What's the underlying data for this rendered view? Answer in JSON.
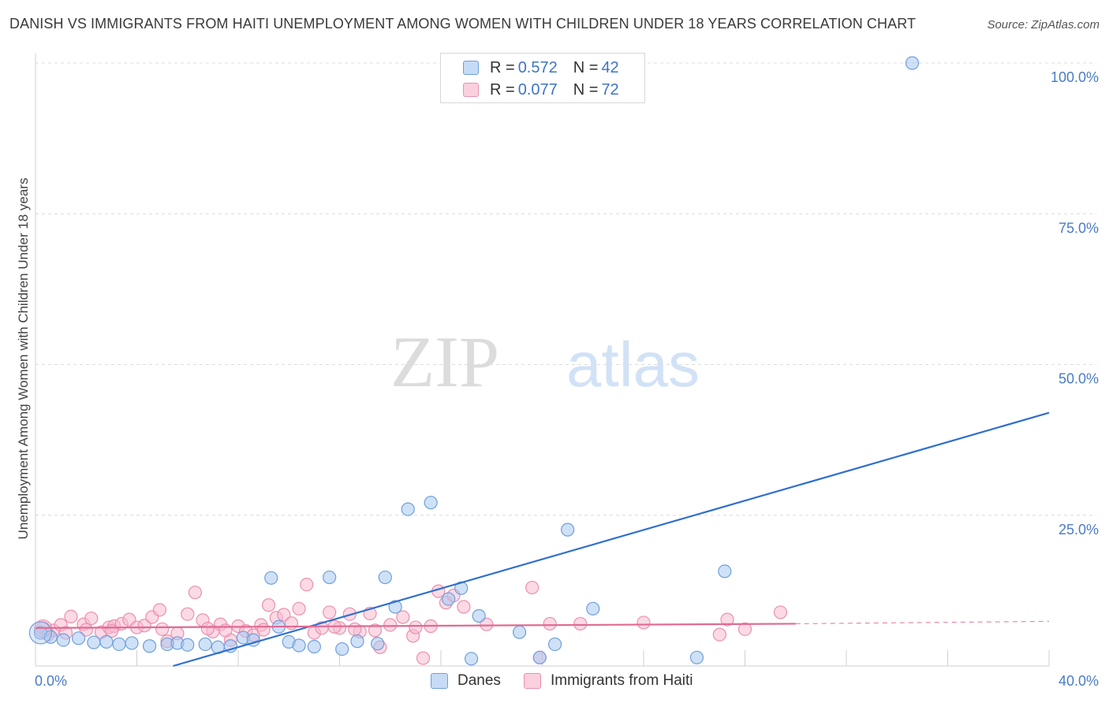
{
  "title": "DANISH VS IMMIGRANTS FROM HAITI UNEMPLOYMENT AMONG WOMEN WITH CHILDREN UNDER 18 YEARS CORRELATION CHART",
  "source": "Source: ZipAtlas.com",
  "watermark": {
    "zip": "ZIP",
    "atlas": "atlas"
  },
  "legend": {
    "rows": [
      {
        "r_label": "R = ",
        "r_value": "0.572",
        "n_label": "N = ",
        "n_value": "42",
        "color": "#a8c8f0"
      },
      {
        "r_label": "R = ",
        "r_value": "0.077",
        "n_label": "N = ",
        "n_value": "72",
        "color": "#f8bcd0"
      }
    ]
  },
  "bottom_legend": {
    "danes": "Danes",
    "haiti": "Immigrants from Haiti"
  },
  "colors": {
    "danes_fill": "#a8c8f0",
    "danes_stroke": "#6f9fdc",
    "danes_line": "#2f6fcf",
    "haiti_fill": "#f8bcd0",
    "haiti_stroke": "#ec8fae",
    "haiti_line": "#e06a92",
    "tick": "#4a7cc7",
    "grid": "#dcdcdc"
  },
  "chart_data": {
    "type": "scatter",
    "ylabel": "Unemployment Among Women with Children Under 18 years",
    "xlabel": "",
    "xlim": [
      0,
      40
    ],
    "ylim": [
      0,
      100
    ],
    "y_ticks": [
      {
        "value": 25,
        "label": "25.0%"
      },
      {
        "value": 50,
        "label": "50.0%"
      },
      {
        "value": 75,
        "label": "75.0%"
      },
      {
        "value": 100,
        "label": "100.0%"
      }
    ],
    "x_ticks": [
      {
        "value": 0,
        "label": "0.0%"
      },
      {
        "value": 40,
        "label": "40.0%"
      }
    ],
    "grid": true,
    "series": [
      {
        "name": "Danes",
        "points": [
          [
            0.2,
            5.5
          ],
          [
            0.6,
            4.8
          ],
          [
            1.1,
            4.3
          ],
          [
            1.7,
            4.6
          ],
          [
            2.3,
            3.9
          ],
          [
            2.8,
            4.0
          ],
          [
            3.3,
            3.6
          ],
          [
            3.8,
            3.8
          ],
          [
            4.5,
            3.3
          ],
          [
            5.2,
            3.6
          ],
          [
            5.6,
            3.8
          ],
          [
            6.0,
            3.5
          ],
          [
            6.7,
            3.6
          ],
          [
            7.2,
            3.1
          ],
          [
            7.7,
            3.3
          ],
          [
            8.2,
            4.7
          ],
          [
            8.6,
            4.3
          ],
          [
            9.3,
            14.6
          ],
          [
            9.6,
            6.5
          ],
          [
            10.0,
            4.0
          ],
          [
            10.4,
            3.4
          ],
          [
            11.0,
            3.2
          ],
          [
            11.6,
            14.7
          ],
          [
            12.1,
            2.8
          ],
          [
            12.7,
            4.1
          ],
          [
            13.5,
            3.7
          ],
          [
            13.8,
            14.7
          ],
          [
            14.2,
            9.8
          ],
          [
            14.7,
            26.0
          ],
          [
            15.6,
            27.1
          ],
          [
            16.3,
            11.1
          ],
          [
            16.8,
            12.9
          ],
          [
            17.2,
            1.2
          ],
          [
            17.5,
            8.3
          ],
          [
            19.1,
            5.6
          ],
          [
            19.9,
            1.4
          ],
          [
            20.5,
            3.6
          ],
          [
            21.0,
            22.6
          ],
          [
            22.0,
            9.5
          ],
          [
            26.1,
            1.4
          ],
          [
            27.2,
            15.7
          ],
          [
            34.6,
            100.0
          ]
        ]
      },
      {
        "name": "Immigrants from Haiti",
        "points": [
          [
            0.3,
            6.3
          ],
          [
            0.7,
            5.9
          ],
          [
            1.0,
            6.8
          ],
          [
            1.4,
            8.2
          ],
          [
            1.9,
            6.9
          ],
          [
            2.2,
            7.9
          ],
          [
            2.6,
            5.6
          ],
          [
            2.9,
            6.4
          ],
          [
            3.1,
            6.6
          ],
          [
            3.4,
            7.0
          ],
          [
            3.7,
            7.7
          ],
          [
            4.0,
            6.4
          ],
          [
            4.3,
            6.7
          ],
          [
            4.6,
            8.1
          ],
          [
            4.9,
            9.3
          ],
          [
            5.2,
            4.1
          ],
          [
            5.6,
            5.4
          ],
          [
            6.0,
            8.6
          ],
          [
            6.3,
            12.2
          ],
          [
            6.6,
            7.6
          ],
          [
            7.0,
            5.7
          ],
          [
            7.3,
            6.9
          ],
          [
            7.7,
            4.3
          ],
          [
            8.0,
            6.6
          ],
          [
            8.3,
            5.8
          ],
          [
            8.6,
            5.1
          ],
          [
            8.9,
            6.8
          ],
          [
            9.2,
            10.1
          ],
          [
            9.5,
            8.0
          ],
          [
            9.8,
            8.5
          ],
          [
            10.1,
            7.1
          ],
          [
            10.4,
            9.5
          ],
          [
            10.7,
            13.5
          ],
          [
            11.0,
            5.5
          ],
          [
            11.3,
            6.3
          ],
          [
            11.6,
            8.9
          ],
          [
            12.0,
            6.3
          ],
          [
            12.4,
            8.6
          ],
          [
            12.8,
            5.7
          ],
          [
            13.2,
            8.7
          ],
          [
            13.6,
            3.1
          ],
          [
            14.0,
            6.8
          ],
          [
            14.5,
            8.1
          ],
          [
            14.9,
            5.0
          ],
          [
            15.3,
            1.3
          ],
          [
            15.6,
            6.6
          ],
          [
            15.9,
            12.4
          ],
          [
            16.2,
            10.5
          ],
          [
            16.5,
            11.7
          ],
          [
            16.9,
            9.8
          ],
          [
            19.6,
            13.0
          ],
          [
            19.9,
            1.4
          ],
          [
            20.3,
            7.0
          ],
          [
            21.5,
            7.0
          ],
          [
            27.0,
            5.2
          ],
          [
            27.3,
            7.7
          ],
          [
            28.0,
            6.1
          ],
          [
            29.4,
            8.9
          ],
          [
            0.5,
            5.2
          ],
          [
            1.2,
            5.5
          ],
          [
            2.0,
            6.0
          ],
          [
            3.0,
            5.8
          ],
          [
            5.0,
            6.1
          ],
          [
            6.8,
            6.2
          ],
          [
            7.5,
            5.9
          ],
          [
            9.0,
            6.0
          ],
          [
            11.8,
            6.5
          ],
          [
            12.6,
            6.1
          ],
          [
            13.4,
            5.9
          ],
          [
            15.0,
            6.4
          ],
          [
            17.8,
            6.9
          ],
          [
            24.0,
            7.2
          ]
        ]
      }
    ],
    "trendlines": [
      {
        "series": "Danes",
        "x": [
          0,
          40
        ],
        "y": [
          -6.6,
          42.0
        ],
        "style": "solid"
      },
      {
        "series": "Immigrants from Haiti",
        "x": [
          0,
          30
        ],
        "y": [
          6.3,
          7.0
        ],
        "style": "solid"
      },
      {
        "series": "Immigrants from Haiti",
        "x": [
          30,
          40
        ],
        "y": [
          7.0,
          7.4
        ],
        "style": "dashed"
      }
    ]
  }
}
